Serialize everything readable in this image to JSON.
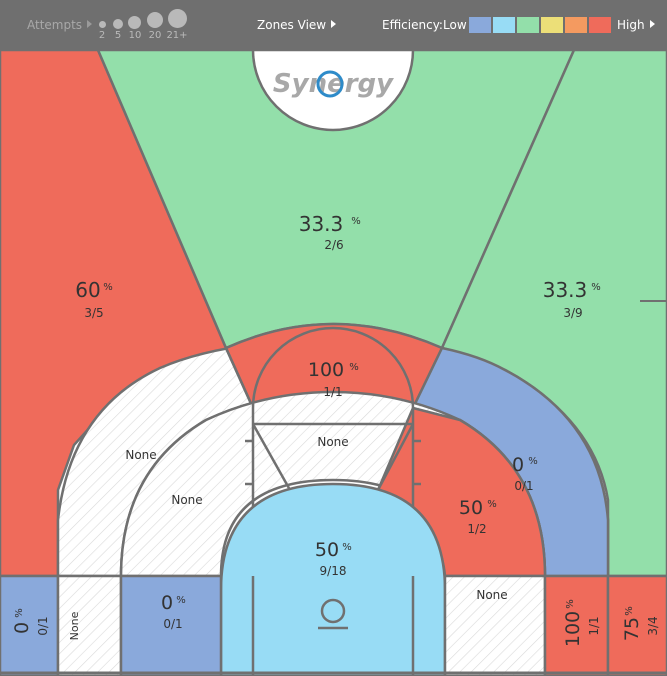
{
  "toolbar": {
    "attempts_label": "Attempts",
    "attempt_sizes": [
      "2",
      "5",
      "10",
      "20",
      "21+"
    ],
    "zones_view_label": "Zones View",
    "efficiency_label": "Efficiency:",
    "low_label": "Low",
    "high_label": "High",
    "scale_colors": [
      "#8aa9db",
      "#98dcf5",
      "#93dfaa",
      "#ecdf78",
      "#f49a60",
      "#ef6b5b"
    ]
  },
  "logo": {
    "text": "Synergy"
  },
  "zones": {
    "left_corner_three": {
      "pct": "0",
      "unit": "%",
      "fraction": "0/1"
    },
    "right_corner_three": {
      "pct": "75",
      "unit": "%",
      "fraction": "3/4"
    },
    "left_wing_three": {
      "pct": "60",
      "unit": "%",
      "fraction": "3/5"
    },
    "top_three": {
      "pct": "33.3",
      "unit": "%",
      "fraction": "2/6"
    },
    "right_wing_three": {
      "pct": "33.3",
      "unit": "%",
      "fraction": "3/9"
    },
    "top_long_two": {
      "pct": "100",
      "unit": "%",
      "fraction": "1/1"
    },
    "left_long_two": {
      "label": "None"
    },
    "right_long_two": {
      "pct": "0",
      "unit": "%",
      "fraction": "0/1"
    },
    "left_mid_range": {
      "label": "None"
    },
    "top_mid_range": {
      "label": "None"
    },
    "right_mid_range": {
      "pct": "50",
      "unit": "%",
      "fraction": "1/2"
    },
    "left_baseline_long_two": {
      "label": "None"
    },
    "left_baseline_mid": {
      "pct": "0",
      "unit": "%",
      "fraction": "0/1"
    },
    "right_baseline_mid": {
      "label": "None"
    },
    "right_baseline_long_two": {
      "pct": "100",
      "unit": "%",
      "fraction": "1/1"
    },
    "restricted_area": {
      "pct": "50",
      "unit": "%",
      "fraction": "9/18"
    }
  }
}
